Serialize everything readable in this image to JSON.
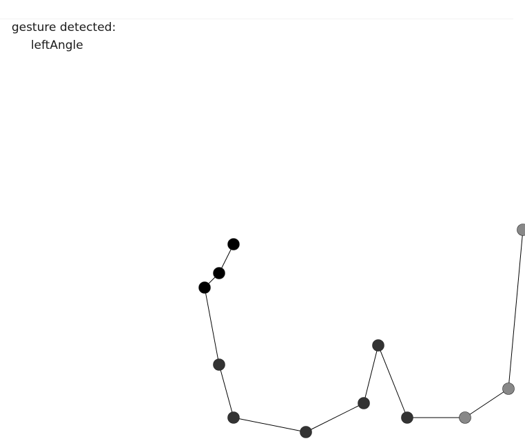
{
  "status": {
    "label": "gesture detected:",
    "value": "leftAngle"
  },
  "trail": {
    "point_count": 17,
    "stroke_color": "#000000",
    "colors": [
      "#000000",
      "#000000",
      "#000000",
      "#333333",
      "#333333",
      "#333333",
      "#333333",
      "#333333",
      "#333333",
      "#888888",
      "#888888",
      "#888888",
      "#888888"
    ]
  }
}
